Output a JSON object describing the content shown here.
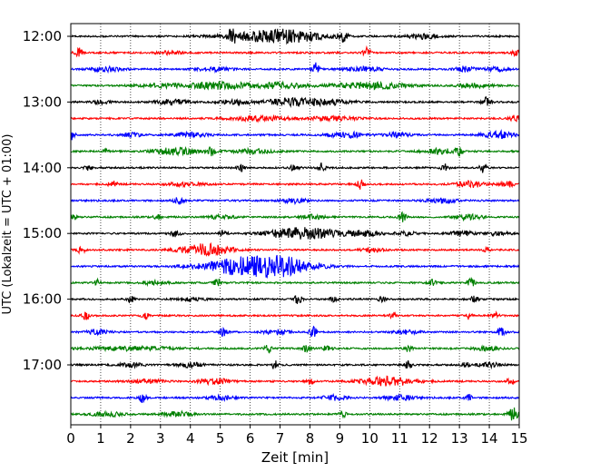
{
  "chart_data": {
    "type": "line",
    "subtype": "helicorder",
    "xlabel": "Zeit  [min]",
    "ylabel": "UTC (Lokalzeit = UTC + 01:00)",
    "xlim": [
      0,
      15
    ],
    "x_ticks": [
      "0",
      "1",
      "2",
      "3",
      "4",
      "5",
      "6",
      "7",
      "8",
      "9",
      "10",
      "11",
      "12",
      "13",
      "14",
      "15"
    ],
    "y_tick_labels": [
      "12:00",
      "13:00",
      "14:00",
      "15:00",
      "16:00",
      "17:00"
    ],
    "vertical_grid": "dotted",
    "trace_colors": [
      "#000000",
      "#ff0000",
      "#0000ff",
      "#008000"
    ],
    "traces": [
      {
        "start": "12:00",
        "events": [
          [
            5.4,
            1.0,
            0.15
          ],
          [
            6.2,
            0.45,
            1.4
          ],
          [
            7.3,
            0.9,
            1.2
          ],
          [
            9.1,
            0.8,
            0.15
          ],
          [
            11.8,
            0.45,
            0.5
          ]
        ]
      },
      {
        "start": "12:15",
        "events": [
          [
            0.25,
            0.9,
            0.12
          ],
          [
            3.3,
            0.3,
            0.4
          ],
          [
            9.9,
            0.8,
            0.12
          ],
          [
            14.9,
            0.5,
            0.15
          ]
        ]
      },
      {
        "start": "12:30",
        "events": [
          [
            1.2,
            0.4,
            0.5
          ],
          [
            4.8,
            0.3,
            0.6
          ],
          [
            8.2,
            1.0,
            0.12
          ],
          [
            9.8,
            0.35,
            0.6
          ],
          [
            13.2,
            0.5,
            0.3
          ],
          [
            14.2,
            0.3,
            0.4
          ]
        ]
      },
      {
        "start": "12:45",
        "events": [
          [
            3.0,
            0.3,
            0.8
          ],
          [
            4.9,
            0.55,
            1.0
          ],
          [
            6.9,
            0.45,
            1.0
          ],
          [
            10.0,
            0.55,
            1.2
          ],
          [
            13.5,
            0.35,
            0.6
          ]
        ]
      },
      {
        "start": "13:00",
        "events": [
          [
            1.0,
            0.3,
            0.3
          ],
          [
            3.4,
            0.45,
            0.5
          ],
          [
            5.5,
            0.35,
            0.6
          ],
          [
            7.3,
            0.6,
            0.8
          ],
          [
            8.6,
            0.45,
            0.8
          ],
          [
            13.9,
            0.8,
            0.15
          ]
        ]
      },
      {
        "start": "13:15",
        "events": [
          [
            6.3,
            0.4,
            1.0
          ],
          [
            8.8,
            0.35,
            0.8
          ],
          [
            14.9,
            0.6,
            0.2
          ]
        ]
      },
      {
        "start": "13:30",
        "events": [
          [
            0.0,
            0.9,
            0.12
          ],
          [
            2.0,
            0.3,
            0.4
          ],
          [
            4.0,
            0.35,
            0.6
          ],
          [
            9.2,
            0.45,
            0.6
          ],
          [
            10.9,
            0.35,
            0.4
          ],
          [
            14.3,
            0.6,
            0.5
          ]
        ]
      },
      {
        "start": "13:45",
        "events": [
          [
            1.2,
            0.45,
            0.12
          ],
          [
            3.5,
            0.6,
            0.7
          ],
          [
            4.7,
            0.7,
            0.12
          ],
          [
            6.1,
            0.35,
            0.7
          ],
          [
            12.3,
            0.5,
            0.5
          ],
          [
            13.0,
            0.7,
            0.12
          ]
        ]
      },
      {
        "start": "14:00",
        "events": [
          [
            0.6,
            0.5,
            0.12
          ],
          [
            5.7,
            0.8,
            0.12
          ],
          [
            7.5,
            0.6,
            0.15
          ],
          [
            8.4,
            0.8,
            0.12
          ],
          [
            12.5,
            0.6,
            0.12
          ],
          [
            13.8,
            0.8,
            0.12
          ]
        ]
      },
      {
        "start": "14:15",
        "events": [
          [
            1.4,
            0.5,
            0.15
          ],
          [
            3.8,
            0.3,
            0.6
          ],
          [
            9.7,
            0.8,
            0.12
          ],
          [
            13.4,
            0.5,
            0.5
          ],
          [
            14.6,
            0.55,
            0.2
          ]
        ]
      },
      {
        "start": "14:30",
        "events": [
          [
            3.6,
            0.6,
            0.15
          ],
          [
            7.5,
            0.4,
            0.4
          ],
          [
            12.4,
            0.4,
            0.5
          ]
        ]
      },
      {
        "start": "14:45",
        "events": [
          [
            0.1,
            0.5,
            0.12
          ],
          [
            2.9,
            0.5,
            0.12
          ],
          [
            5.0,
            0.3,
            0.5
          ],
          [
            8.1,
            0.35,
            0.4
          ],
          [
            11.1,
            0.9,
            0.12
          ],
          [
            13.3,
            0.4,
            0.5
          ]
        ]
      },
      {
        "start": "15:00",
        "events": [
          [
            3.5,
            0.6,
            0.15
          ],
          [
            5.1,
            0.5,
            0.12
          ],
          [
            7.0,
            0.4,
            0.6
          ],
          [
            8.0,
            0.9,
            1.0
          ],
          [
            9.8,
            0.45,
            0.5
          ],
          [
            11.2,
            0.3,
            0.4
          ],
          [
            13.1,
            0.45,
            0.4
          ],
          [
            14.3,
            0.3,
            0.4
          ]
        ]
      },
      {
        "start": "15:15",
        "events": [
          [
            0.35,
            0.6,
            0.12
          ],
          [
            4.5,
            1.0,
            0.8
          ],
          [
            10.1,
            0.3,
            0.4
          ],
          [
            13.9,
            0.45,
            0.12
          ]
        ]
      },
      {
        "start": "15:30",
        "events": [
          [
            6.2,
            1.8,
            1.6
          ],
          [
            7.2,
            0.4,
            0.8
          ]
        ]
      },
      {
        "start": "15:45",
        "events": [
          [
            0.9,
            0.5,
            0.12
          ],
          [
            2.8,
            0.35,
            0.4
          ],
          [
            4.9,
            0.7,
            0.12
          ],
          [
            12.1,
            0.55,
            0.12
          ],
          [
            13.4,
            0.7,
            0.12
          ]
        ]
      },
      {
        "start": "16:00",
        "events": [
          [
            2.0,
            0.5,
            0.12
          ],
          [
            4.0,
            0.3,
            0.4
          ],
          [
            7.6,
            0.8,
            0.12
          ],
          [
            8.8,
            0.5,
            0.12
          ],
          [
            10.4,
            0.4,
            0.12
          ],
          [
            13.5,
            0.6,
            0.12
          ]
        ]
      },
      {
        "start": "16:15",
        "events": [
          [
            0.5,
            0.6,
            0.12
          ],
          [
            2.5,
            0.6,
            0.12
          ],
          [
            10.8,
            0.6,
            0.12
          ],
          [
            13.3,
            0.6,
            0.12
          ],
          [
            14.2,
            0.5,
            0.12
          ]
        ]
      },
      {
        "start": "16:30",
        "events": [
          [
            0.9,
            0.35,
            0.4
          ],
          [
            5.1,
            0.7,
            0.12
          ],
          [
            6.9,
            0.4,
            0.4
          ],
          [
            8.1,
            1.0,
            0.12
          ],
          [
            11.2,
            0.35,
            0.4
          ],
          [
            14.4,
            0.9,
            0.12
          ]
        ]
      },
      {
        "start": "16:45",
        "events": [
          [
            2.0,
            0.3,
            1.5
          ],
          [
            6.6,
            0.7,
            0.12
          ],
          [
            7.9,
            0.6,
            0.15
          ],
          [
            8.6,
            0.6,
            0.15
          ],
          [
            11.3,
            0.7,
            0.12
          ],
          [
            13.9,
            0.4,
            0.4
          ]
        ]
      },
      {
        "start": "17:00",
        "events": [
          [
            2.0,
            0.35,
            0.4
          ],
          [
            4.0,
            0.4,
            0.4
          ],
          [
            6.8,
            0.8,
            0.12
          ],
          [
            11.3,
            0.8,
            0.12
          ],
          [
            13.2,
            0.5,
            0.12
          ],
          [
            14.0,
            0.35,
            0.4
          ]
        ]
      },
      {
        "start": "17:15",
        "events": [
          [
            2.5,
            0.35,
            0.6
          ],
          [
            4.8,
            0.5,
            0.5
          ],
          [
            8.0,
            0.5,
            0.12
          ],
          [
            10.6,
            0.8,
            0.9
          ],
          [
            14.7,
            0.5,
            0.12
          ]
        ]
      },
      {
        "start": "17:30",
        "events": [
          [
            2.4,
            0.8,
            0.12
          ],
          [
            5.0,
            0.35,
            0.4
          ],
          [
            8.8,
            0.4,
            0.4
          ],
          [
            11.0,
            0.4,
            0.5
          ],
          [
            13.3,
            0.55,
            0.12
          ]
        ]
      },
      {
        "start": "17:45",
        "events": [
          [
            1.2,
            0.4,
            0.5
          ],
          [
            3.6,
            0.4,
            0.5
          ],
          [
            9.1,
            0.5,
            0.12
          ],
          [
            14.8,
            1.1,
            0.15
          ]
        ]
      }
    ]
  }
}
